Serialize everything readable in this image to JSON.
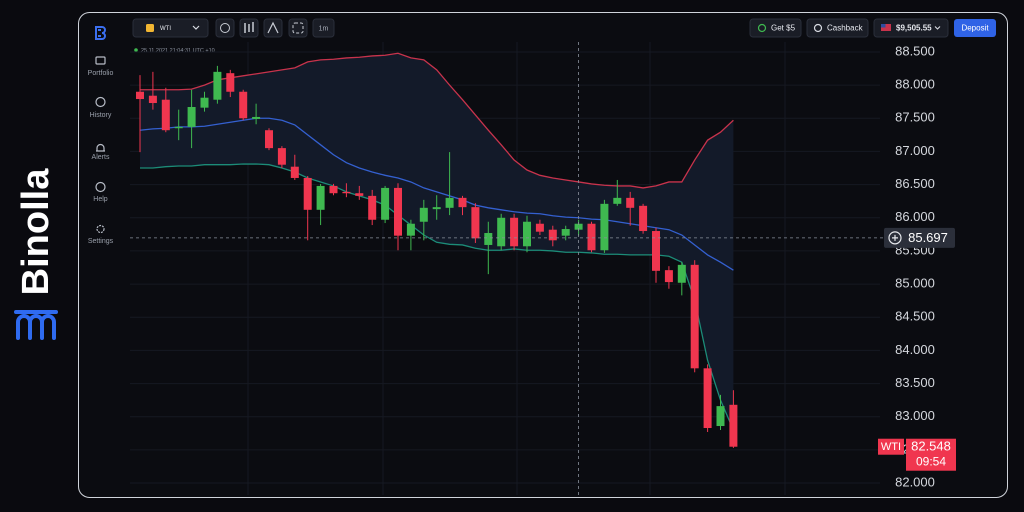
{
  "brand": "Binolla",
  "sidebar": [
    "Portfolio",
    "History",
    "Alerts",
    "Help",
    "Settings"
  ],
  "top_bar": {
    "asset": "WTI",
    "timeframe": "1m",
    "bonus_button": "Get $5",
    "cashback_button": "Cashback",
    "balance": "$9,505.55",
    "deposit_button": "Deposit"
  },
  "chart_data": {
    "type": "candlestick",
    "timestamp": "25.11.2021 21:04:31 UTC +10",
    "categories": [
      null,
      null,
      null,
      null,
      null,
      null,
      null,
      null,
      null,
      null,
      null,
      null,
      null,
      null,
      null,
      null,
      null,
      null,
      null,
      null,
      null,
      null,
      null,
      null,
      null,
      null,
      null,
      null,
      null,
      null,
      null,
      null,
      null,
      null,
      null,
      null,
      null,
      null,
      null,
      null,
      null,
      null,
      null,
      null,
      null,
      null,
      null
    ],
    "open": [
      87.9,
      87.84,
      87.78,
      87.35,
      87.37,
      87.66,
      87.78,
      88.18,
      87.9,
      87.49,
      87.32,
      87.05,
      86.77,
      86.6,
      86.12,
      86.48,
      86.39,
      86.37,
      86.33,
      85.97,
      86.45,
      85.73,
      85.94,
      86.13,
      86.15,
      86.3,
      86.16,
      85.59,
      85.57,
      86.0,
      85.57,
      85.91,
      85.82,
      85.73,
      85.82,
      85.91,
      85.51,
      86.21,
      86.3,
      86.18,
      85.8,
      85.21,
      85.02,
      85.29,
      83.73,
      82.86,
      83.18
    ],
    "high": [
      88.15,
      88.2,
      87.96,
      87.63,
      87.93,
      87.9,
      88.29,
      88.23,
      87.93,
      87.72,
      87.35,
      87.08,
      86.95,
      86.63,
      86.51,
      86.51,
      86.52,
      86.48,
      86.42,
      86.48,
      86.52,
      85.97,
      86.27,
      86.34,
      86.99,
      86.33,
      86.22,
      85.94,
      86.06,
      86.06,
      86.03,
      85.97,
      85.88,
      85.88,
      85.97,
      85.94,
      86.27,
      86.57,
      86.39,
      86.21,
      85.85,
      85.27,
      85.33,
      85.36,
      83.79,
      83.33,
      83.4
    ],
    "low": [
      86.99,
      87.63,
      87.29,
      87.17,
      87.05,
      87.6,
      87.72,
      87.82,
      87.47,
      87.41,
      87.02,
      86.75,
      86.57,
      85.66,
      85.89,
      86.34,
      86.31,
      86.27,
      85.89,
      85.92,
      85.51,
      85.51,
      85.66,
      85.97,
      86.04,
      86.04,
      85.62,
      85.15,
      85.51,
      85.51,
      85.48,
      85.74,
      85.57,
      85.66,
      85.73,
      85.48,
      85.47,
      86.18,
      85.88,
      85.76,
      85.02,
      84.93,
      84.83,
      83.67,
      82.77,
      82.8,
      82.53
    ],
    "close": [
      87.79,
      87.73,
      87.32,
      87.37,
      87.67,
      87.81,
      88.2,
      87.9,
      87.5,
      87.52,
      87.05,
      86.8,
      86.6,
      86.12,
      86.48,
      86.37,
      86.37,
      86.33,
      85.97,
      86.45,
      85.73,
      85.91,
      86.15,
      86.16,
      86.3,
      86.16,
      85.69,
      85.77,
      86.0,
      85.57,
      85.94,
      85.79,
      85.66,
      85.83,
      85.91,
      85.51,
      86.21,
      86.3,
      86.15,
      85.8,
      85.2,
      85.03,
      85.29,
      83.73,
      82.83,
      83.16,
      82.548
    ],
    "up_color": "#3fb950",
    "down_color": "#f0364f",
    "series": [
      {
        "color": "#c8334c",
        "values": [
          87.93,
          87.93,
          87.93,
          87.93,
          87.94,
          88.0,
          88.08,
          88.11,
          88.14,
          88.17,
          88.2,
          88.23,
          88.26,
          88.35,
          88.38,
          88.39,
          88.41,
          88.42,
          88.44,
          88.45,
          88.48,
          88.41,
          88.38,
          88.23,
          88.0,
          87.78,
          87.55,
          87.32,
          87.1,
          86.87,
          86.72,
          86.64,
          86.6,
          86.57,
          86.54,
          86.51,
          86.49,
          86.48,
          86.48,
          86.45,
          86.48,
          86.54,
          86.54,
          86.87,
          87.17,
          87.29,
          87.47
        ]
      },
      {
        "color": "#3460d0",
        "values": [
          87.32,
          87.34,
          87.35,
          87.37,
          87.37,
          87.38,
          87.41,
          87.44,
          87.47,
          87.5,
          87.5,
          87.47,
          87.4,
          87.25,
          87.1,
          86.95,
          86.83,
          86.75,
          86.69,
          86.64,
          86.6,
          86.54,
          86.45,
          86.39,
          86.33,
          86.27,
          86.19,
          86.15,
          86.12,
          86.09,
          86.07,
          86.06,
          86.03,
          86.01,
          86.0,
          85.98,
          85.97,
          85.94,
          85.91,
          85.88,
          85.85,
          85.82,
          85.74,
          85.59,
          85.44,
          85.33,
          85.21
        ]
      },
      {
        "color": "#1c8c78",
        "values": [
          86.75,
          86.75,
          86.77,
          86.78,
          86.78,
          86.8,
          86.8,
          86.8,
          86.81,
          86.81,
          86.8,
          86.75,
          86.69,
          86.6,
          86.54,
          86.48,
          86.39,
          86.33,
          86.27,
          86.19,
          86.04,
          85.89,
          85.74,
          85.63,
          85.6,
          85.59,
          85.54,
          85.51,
          85.51,
          85.53,
          85.51,
          85.51,
          85.5,
          85.48,
          85.48,
          85.47,
          85.45,
          85.45,
          85.44,
          85.44,
          85.44,
          85.42,
          85.33,
          84.76,
          83.85,
          83.25,
          82.8
        ]
      }
    ],
    "band_fill": "#131a29",
    "ylim": [
      81.82,
      88.65
    ],
    "yticks": [
      {
        "value": 82,
        "label": "82.000"
      },
      {
        "value": 82.5,
        "label": "82.500"
      },
      {
        "value": 83,
        "label": "83.000"
      },
      {
        "value": 83.5,
        "label": "83.500"
      },
      {
        "value": 84,
        "label": "84.000"
      },
      {
        "value": 84.5,
        "label": "84.500"
      },
      {
        "value": 85,
        "label": "85.000"
      },
      {
        "value": 85.5,
        "label": "85.500"
      },
      {
        "value": 86,
        "label": "86.000"
      },
      {
        "value": 86.5,
        "label": "86.500"
      },
      {
        "value": 87,
        "label": "87.000"
      },
      {
        "value": 87.5,
        "label": "87.500"
      },
      {
        "value": 88,
        "label": "88.000"
      },
      {
        "value": 88.5,
        "label": "88.500"
      }
    ],
    "grid": true,
    "crosshair_index": 34,
    "crosshair_price": 85.697,
    "price_tag": "WTI",
    "current_price": 82.548,
    "timer": "09:54"
  }
}
